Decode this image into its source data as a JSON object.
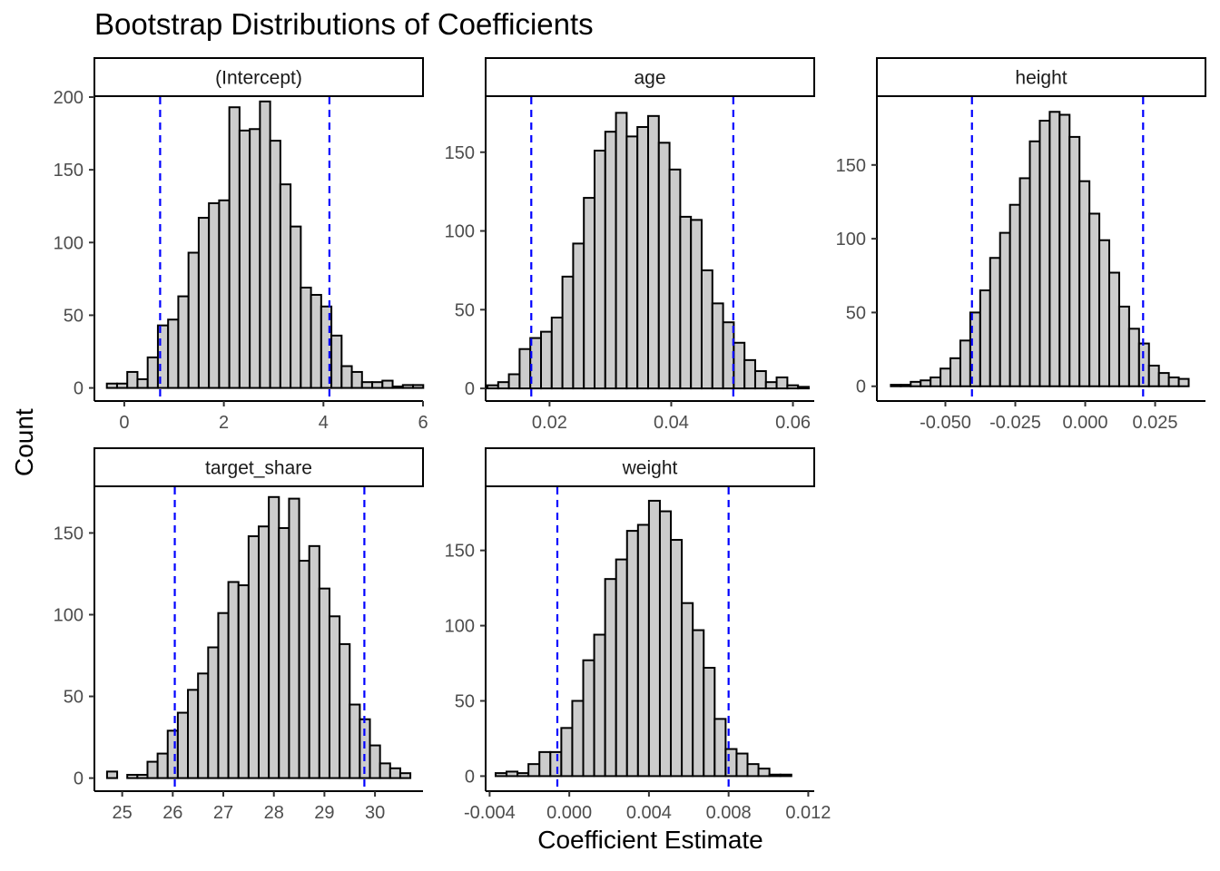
{
  "title": "Bootstrap Distributions of Coefficients",
  "xlabel": "Coefficient Estimate",
  "ylabel": "Count",
  "colors": {
    "bar_fill": "#cccccc",
    "bar_stroke": "#000000",
    "ci_line": "#0000ff",
    "strip_fill": "#ffffff"
  },
  "chart_data": [
    {
      "type": "bar",
      "panel": "(Intercept)",
      "bin_start": -0.35,
      "bin_width": 0.205,
      "values": [
        3,
        3,
        11,
        6,
        21,
        43,
        47,
        63,
        93,
        117,
        127,
        129,
        193,
        177,
        178,
        197,
        170,
        140,
        111,
        69,
        64,
        56,
        36,
        15,
        11,
        4,
        4,
        5,
        1,
        2,
        2
      ],
      "xticks": [
        0,
        2,
        4,
        6
      ],
      "xlim": [
        -0.6,
        6.0
      ],
      "yticks": [
        0,
        50,
        100,
        150,
        200
      ],
      "ylim": [
        -9,
        200
      ],
      "ci": [
        0.72,
        4.12
      ]
    },
    {
      "type": "bar",
      "panel": "age",
      "bin_start": 0.0098,
      "bin_width": 0.00176,
      "values": [
        2,
        4,
        9,
        25,
        32,
        36,
        45,
        71,
        92,
        121,
        151,
        163,
        175,
        160,
        166,
        173,
        156,
        139,
        109,
        107,
        75,
        54,
        42,
        29,
        18,
        11,
        4,
        7,
        2,
        1
      ],
      "xticks": [
        0.02,
        0.04,
        0.06
      ],
      "xticklabels": [
        "0.02",
        "0.04",
        "0.06"
      ],
      "xlim": [
        0.0095,
        0.0635
      ],
      "yticks": [
        0,
        50,
        100,
        150
      ],
      "ylim": [
        -8,
        185
      ],
      "ci": [
        0.017,
        0.0502
      ]
    },
    {
      "type": "bar",
      "panel": "height",
      "bin_start": -0.0695,
      "bin_width": 0.00355,
      "values": [
        1,
        1,
        3,
        4,
        6,
        12,
        19,
        31,
        50,
        65,
        87,
        104,
        123,
        141,
        166,
        180,
        186,
        184,
        169,
        139,
        117,
        99,
        77,
        54,
        39,
        29,
        14,
        9,
        6,
        5
      ],
      "xticks": [
        -0.05,
        -0.025,
        0.0,
        0.025
      ],
      "xticklabels": [
        "-0.050",
        "-0.025",
        "0.000",
        "0.025"
      ],
      "xlim": [
        -0.0745,
        0.043
      ],
      "yticks": [
        0,
        50,
        100,
        150
      ],
      "ylim": [
        -10,
        196
      ],
      "ci": [
        -0.0405,
        0.0207
      ]
    },
    {
      "type": "bar",
      "panel": "target_share",
      "bin_start": 24.7,
      "bin_width": 0.2,
      "values": [
        4,
        0,
        2,
        2,
        10,
        15,
        29,
        40,
        54,
        64,
        80,
        101,
        120,
        118,
        148,
        154,
        172,
        153,
        171,
        133,
        142,
        116,
        99,
        82,
        45,
        36,
        20,
        9,
        6,
        3
      ],
      "xticks": [
        25,
        26,
        27,
        28,
        29,
        30
      ],
      "xlim": [
        24.45,
        30.95
      ],
      "yticks": [
        0,
        50,
        100,
        150
      ],
      "ylim": [
        -8,
        178
      ],
      "ci": [
        26.04,
        29.79
      ]
    },
    {
      "type": "bar",
      "panel": "weight",
      "bin_start": -0.0037,
      "bin_width": 0.00055,
      "values": [
        2,
        3,
        2,
        8,
        16,
        16,
        32,
        50,
        77,
        94,
        131,
        144,
        163,
        167,
        183,
        176,
        157,
        115,
        97,
        72,
        38,
        18,
        15,
        8,
        5,
        1,
        1
      ],
      "xticks": [
        -0.004,
        0.0,
        0.004,
        0.008,
        0.012
      ],
      "xticklabels": [
        "-0.004",
        "0.000",
        "0.004",
        "0.008",
        "0.012"
      ],
      "xlim": [
        -0.0042,
        0.0123
      ],
      "yticks": [
        0,
        50,
        100,
        150
      ],
      "ylim": [
        -10,
        192
      ],
      "ci": [
        -0.0006,
        0.008
      ]
    }
  ]
}
